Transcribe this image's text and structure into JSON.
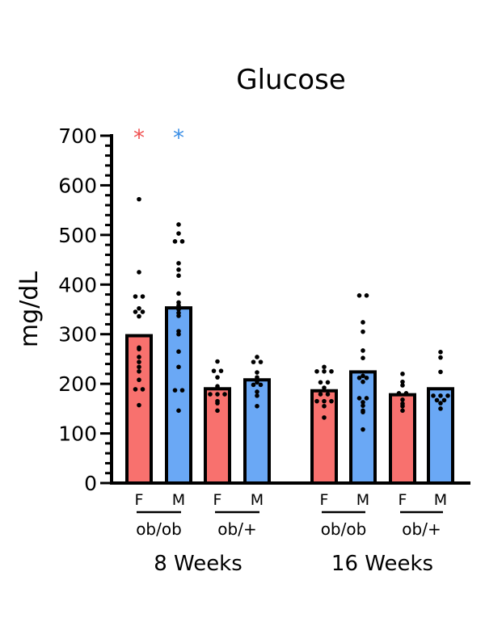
{
  "chart_data": {
    "type": "bar",
    "title": "Glucose",
    "ylabel": "mg/dL",
    "xlabel": "",
    "ylim": [
      0,
      700
    ],
    "yticks": [
      "0",
      "100",
      "200",
      "300",
      "400",
      "500",
      "600",
      "700"
    ],
    "grid": false,
    "colors": {
      "F": "#f8716e",
      "M": "#6aa8f5",
      "sig_F": "#f05050",
      "sig_M": "#3a8ee6"
    },
    "timepoints": [
      {
        "label": "8 Weeks",
        "genotypes": [
          {
            "label": "ob/ob",
            "bars": [
              {
                "sex": "F",
                "mean": 297,
                "significant": true,
                "points": [
                  572,
                  425,
                  376,
                  376,
                  352,
                  345,
                  345,
                  336,
                  273,
                  270,
                  254,
                  244,
                  234,
                  225,
                  208,
                  189,
                  189,
                  157
                ]
              },
              {
                "sex": "M",
                "mean": 353,
                "significant": true,
                "points": [
                  521,
                  503,
                  487,
                  487,
                  443,
                  430,
                  418,
                  382,
                  364,
                  358,
                  350,
                  343,
                  337,
                  306,
                  300,
                  265,
                  234,
                  187,
                  187,
                  146
                ]
              }
            ]
          },
          {
            "label": "ob/+",
            "bars": [
              {
                "sex": "F",
                "mean": 190,
                "significant": false,
                "points": [
                  245,
                  226,
                  226,
                  213,
                  195,
                  179,
                  179,
                  179,
                  165,
                  161,
                  146
                ]
              },
              {
                "sex": "M",
                "mean": 208,
                "significant": false,
                "points": [
                  254,
                  244,
                  244,
                  223,
                  213,
                  203,
                  198,
                  198,
                  184,
                  176,
                  155
                ]
              }
            ]
          }
        ]
      },
      {
        "label": "16 Weeks",
        "genotypes": [
          {
            "label": "ob/ob",
            "bars": [
              {
                "sex": "F",
                "mean": 186,
                "significant": false,
                "points": [
                  234,
                  225,
                  225,
                  225,
                  203,
                  203,
                  192,
                  179,
                  179,
                  165,
                  165,
                  165,
                  155,
                  132
                ]
              },
              {
                "sex": "M",
                "mean": 224,
                "significant": false,
                "points": [
                  378,
                  378,
                  324,
                  305,
                  267,
                  252,
                  216,
                  212,
                  212,
                  204,
                  171,
                  171,
                  163,
                  156,
                  146,
                  143,
                  108
                ]
              }
            ]
          },
          {
            "label": "ob/+",
            "bars": [
              {
                "sex": "F",
                "mean": 178,
                "significant": false,
                "points": [
                  220,
                  204,
                  197,
                  181,
                  181,
                  168,
                  160,
                  155,
                  146
                ]
              },
              {
                "sex": "M",
                "mean": 190,
                "significant": false,
                "points": [
                  264,
                  253,
                  224,
                  176,
                  176,
                  176,
                  167,
                  167,
                  161,
                  150
                ]
              }
            ]
          }
        ]
      }
    ],
    "significance_marker": "*"
  }
}
